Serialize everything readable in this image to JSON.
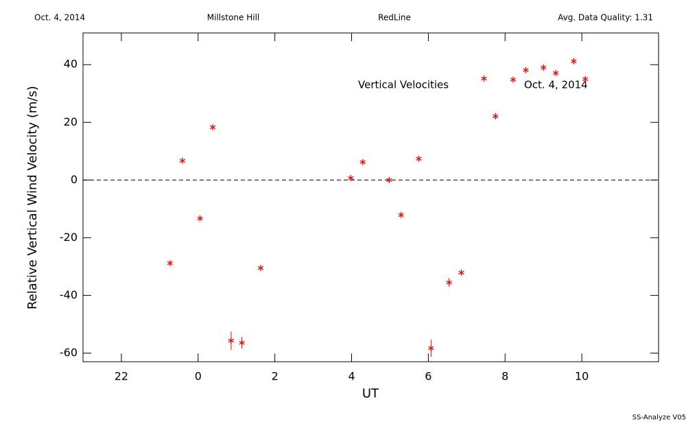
{
  "chart_data": {
    "type": "scatter",
    "header": [
      "Oct. 4, 2014",
      "Millstone Hill",
      "RedLine",
      "Avg. Data Quality: 1.31"
    ],
    "annotations": [
      "Vertical Velocities",
      "Oct. 4, 2014"
    ],
    "x_label": "UT",
    "y_label": "Relative Vertical Wind Velocity (m/s)",
    "footer": "SS-Analyze V05",
    "xlim": [
      -3,
      12
    ],
    "ylim": [
      -63,
      51
    ],
    "xticks": [
      {
        "value": -2,
        "label": "22"
      },
      0,
      2,
      4,
      6,
      8,
      10
    ],
    "yticks": [
      -60,
      -40,
      -20,
      0,
      20,
      40
    ],
    "hline": 0,
    "series": [
      {
        "color": "#ff0000",
        "x": [
          -0.73,
          -0.41,
          0.05,
          0.38,
          0.86,
          1.14,
          1.63,
          3.98,
          4.29,
          4.98,
          5.29,
          5.75,
          6.07,
          6.54,
          6.86,
          7.45,
          7.75,
          8.21,
          8.54,
          9.0,
          9.32,
          9.79,
          10.09
        ],
        "values": [
          -28.8,
          6.7,
          -13.3,
          18.3,
          -55.7,
          -56.4,
          -30.5,
          0.7,
          6.2,
          0,
          -12.1,
          7.4,
          -58.3,
          -35.5,
          -32.1,
          35.2,
          22.1,
          34.8,
          38.1,
          39.0,
          37.1,
          41.2,
          35.0
        ],
        "errors": [
          1,
          1,
          1,
          1,
          3.2,
          2,
          1,
          1,
          1,
          1,
          1,
          1,
          3,
          1.5,
          1,
          1,
          1,
          1,
          1,
          1,
          1,
          1,
          1
        ]
      }
    ]
  }
}
